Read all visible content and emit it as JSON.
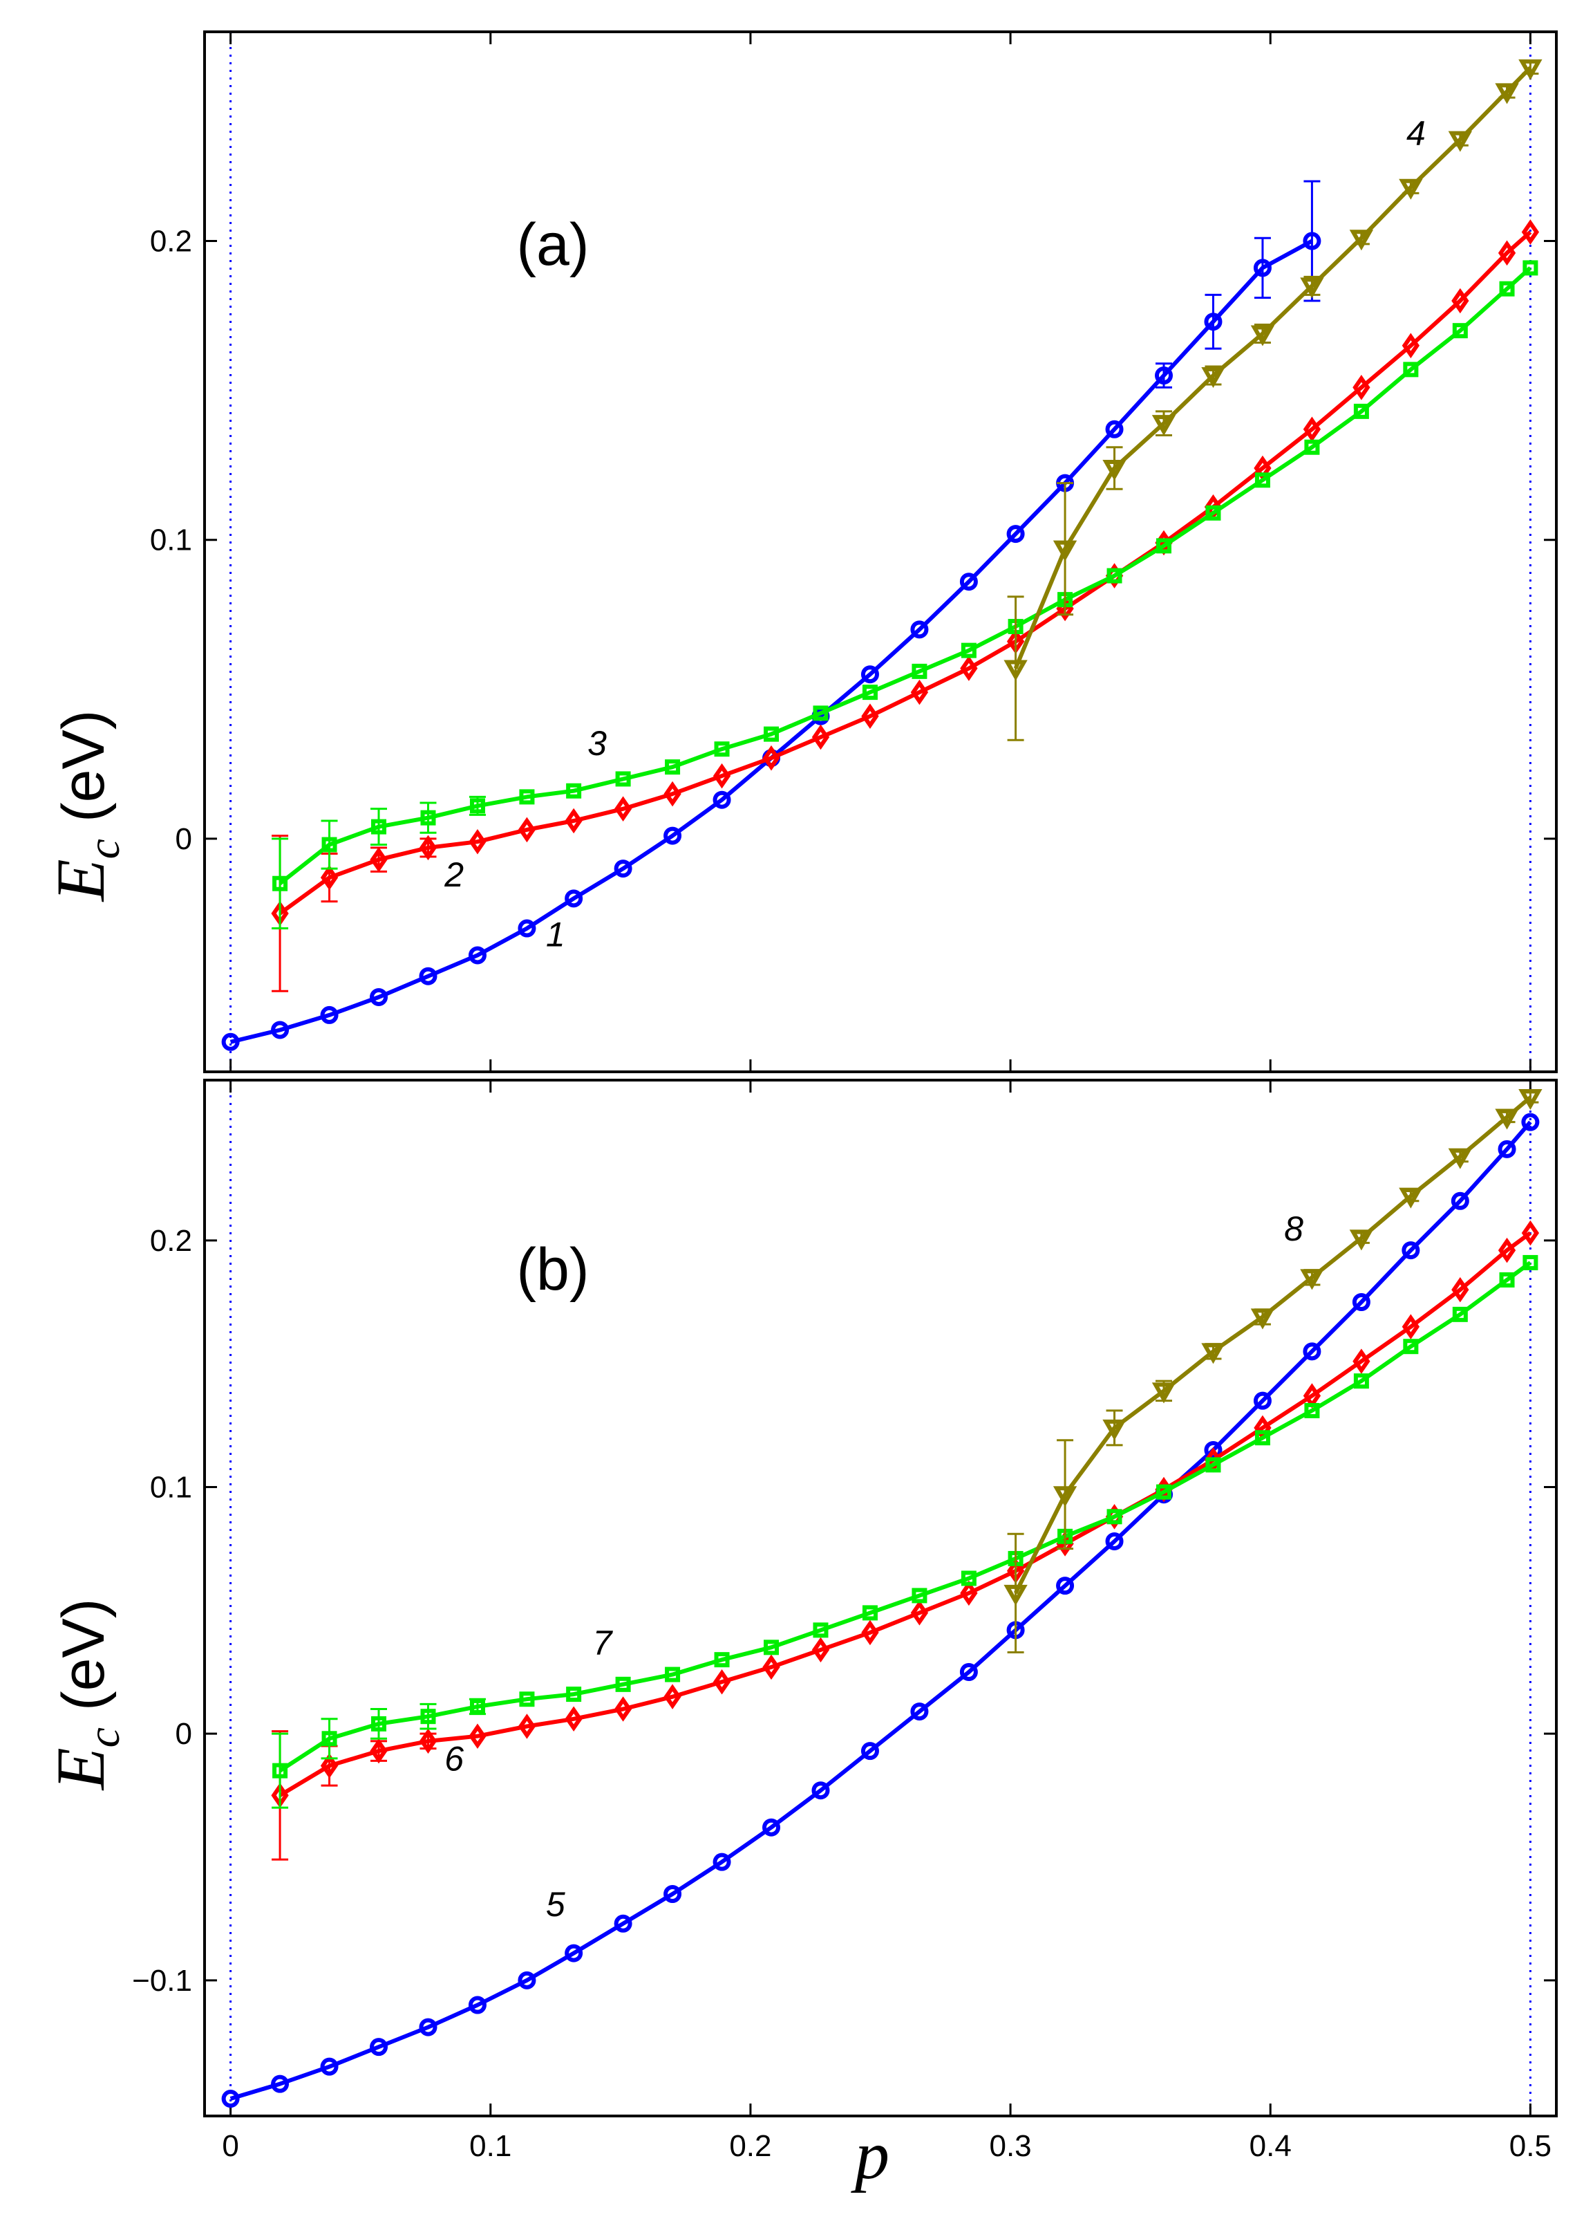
{
  "chart_data": [
    {
      "type": "line",
      "panel_label": "(a)",
      "xlabel": "p",
      "ylabel_main": "E",
      "ylabel_sub": "c",
      "ylabel_unit": "(eV)",
      "xlim": [
        -0.01,
        0.51
      ],
      "ylim": [
        -0.078,
        0.27
      ],
      "xticks": [
        0,
        0.1,
        0.2,
        0.3,
        0.4,
        0.5
      ],
      "xtick_labels": [
        "0",
        "0.1",
        "0.2",
        "0.3",
        "0.4",
        "0.5"
      ],
      "yticks": [
        0,
        0.1,
        0.2
      ],
      "ytick_labels": [
        "0",
        "0.1",
        "0.2"
      ],
      "vlines": [
        0,
        0.5
      ],
      "series": [
        {
          "name": "1",
          "color": "#0000ff",
          "marker": "circle",
          "x": [
            0,
            0.019,
            0.038,
            0.057,
            0.076,
            0.095,
            0.114,
            0.132,
            0.151,
            0.17,
            0.189,
            0.208,
            0.227,
            0.246,
            0.265,
            0.284,
            0.302,
            0.321,
            0.34,
            0.359,
            0.378,
            0.397,
            0.416
          ],
          "y": [
            -0.068,
            -0.064,
            -0.059,
            -0.053,
            -0.046,
            -0.039,
            -0.03,
            -0.02,
            -0.01,
            0.001,
            0.013,
            0.027,
            0.041,
            0.055,
            0.07,
            0.086,
            0.102,
            0.119,
            0.137,
            0.155,
            0.173,
            0.191,
            0.2
          ],
          "err": [
            0,
            0,
            0,
            0,
            0,
            0,
            0,
            0,
            0,
            0,
            0,
            0,
            0,
            0,
            0,
            0,
            0,
            0,
            0,
            0.004,
            0.009,
            0.01,
            0.02
          ]
        },
        {
          "name": "2",
          "color": "#ff0000",
          "marker": "diamond",
          "x": [
            0.019,
            0.038,
            0.057,
            0.076,
            0.095,
            0.114,
            0.132,
            0.151,
            0.17,
            0.189,
            0.208,
            0.227,
            0.246,
            0.265,
            0.284,
            0.302,
            0.321,
            0.34,
            0.359,
            0.378,
            0.397,
            0.416,
            0.435,
            0.454,
            0.473,
            0.491,
            0.5
          ],
          "y": [
            -0.025,
            -0.013,
            -0.007,
            -0.003,
            -0.001,
            0.003,
            0.006,
            0.01,
            0.015,
            0.021,
            0.027,
            0.034,
            0.041,
            0.049,
            0.057,
            0.066,
            0.077,
            0.088,
            0.099,
            0.111,
            0.124,
            0.137,
            0.151,
            0.165,
            0.18,
            0.196,
            0.203
          ],
          "err": [
            0.026,
            0.008,
            0.004,
            0.003,
            0,
            0,
            0,
            0,
            0,
            0,
            0,
            0,
            0,
            0,
            0,
            0,
            0,
            0,
            0,
            0,
            0,
            0,
            0,
            0,
            0,
            0,
            0
          ]
        },
        {
          "name": "3",
          "color": "#00ee00",
          "marker": "square",
          "x": [
            0.019,
            0.038,
            0.057,
            0.076,
            0.095,
            0.114,
            0.132,
            0.151,
            0.17,
            0.189,
            0.208,
            0.227,
            0.246,
            0.265,
            0.284,
            0.302,
            0.321,
            0.34,
            0.359,
            0.378,
            0.397,
            0.416,
            0.435,
            0.454,
            0.473,
            0.491,
            0.5
          ],
          "y": [
            -0.015,
            -0.002,
            0.004,
            0.007,
            0.011,
            0.014,
            0.016,
            0.02,
            0.024,
            0.03,
            0.035,
            0.042,
            0.049,
            0.056,
            0.063,
            0.071,
            0.08,
            0.088,
            0.098,
            0.109,
            0.12,
            0.131,
            0.143,
            0.157,
            0.17,
            0.184,
            0.191
          ],
          "err": [
            0.015,
            0.008,
            0.006,
            0.005,
            0.003,
            0,
            0,
            0,
            0,
            0,
            0,
            0,
            0,
            0,
            0,
            0,
            0,
            0,
            0,
            0,
            0,
            0,
            0,
            0,
            0,
            0,
            0
          ]
        },
        {
          "name": "4",
          "color": "#8b8000",
          "marker": "triangle-down",
          "x": [
            0.302,
            0.321,
            0.34,
            0.359,
            0.378,
            0.397,
            0.416,
            0.435,
            0.454,
            0.473,
            0.491,
            0.5
          ],
          "y": [
            0.057,
            0.097,
            0.124,
            0.139,
            0.155,
            0.169,
            0.185,
            0.201,
            0.218,
            0.234,
            0.25,
            0.258
          ],
          "err": [
            0.024,
            0.022,
            0.007,
            0.004,
            0.003,
            0.003,
            0.003,
            0.002,
            0.002,
            0.002,
            0.002,
            0.002
          ]
        }
      ],
      "annotations": [
        {
          "text": "1",
          "x": 0.125,
          "y": -0.036
        },
        {
          "text": "2",
          "x": 0.086,
          "y": -0.016
        },
        {
          "text": "3",
          "x": 0.141,
          "y": 0.028
        },
        {
          "text": "4",
          "x": 0.456,
          "y": 0.232
        }
      ]
    },
    {
      "type": "line",
      "panel_label": "(b)",
      "xlabel": "p",
      "ylabel_main": "E",
      "ylabel_sub": "c",
      "ylabel_unit": "(eV)",
      "xlim": [
        -0.01,
        0.51
      ],
      "ylim": [
        -0.155,
        0.265
      ],
      "xticks": [
        0,
        0.1,
        0.2,
        0.3,
        0.4,
        0.5
      ],
      "xtick_labels": [
        "0",
        "0.1",
        "0.2",
        "0.3",
        "0.4",
        "0.5"
      ],
      "yticks": [
        -0.1,
        0,
        0.1,
        0.2
      ],
      "ytick_labels": [
        "−0.1",
        "0",
        "0.1",
        "0.2"
      ],
      "vlines": [
        0,
        0.5
      ],
      "series": [
        {
          "name": "5",
          "color": "#0000ff",
          "marker": "circle",
          "x": [
            0,
            0.019,
            0.038,
            0.057,
            0.076,
            0.095,
            0.114,
            0.132,
            0.151,
            0.17,
            0.189,
            0.208,
            0.227,
            0.246,
            0.265,
            0.284,
            0.302,
            0.321,
            0.34,
            0.359,
            0.378,
            0.397,
            0.416,
            0.435,
            0.454,
            0.473,
            0.491,
            0.5
          ],
          "y": [
            -0.148,
            -0.142,
            -0.135,
            -0.127,
            -0.119,
            -0.11,
            -0.1,
            -0.089,
            -0.077,
            -0.065,
            -0.052,
            -0.038,
            -0.023,
            -0.007,
            0.009,
            0.025,
            0.042,
            0.06,
            0.078,
            0.097,
            0.115,
            0.135,
            0.155,
            0.175,
            0.196,
            0.216,
            0.237,
            0.248
          ],
          "err": []
        },
        {
          "name": "6",
          "color": "#ff0000",
          "marker": "diamond",
          "x": [
            0.019,
            0.038,
            0.057,
            0.076,
            0.095,
            0.114,
            0.132,
            0.151,
            0.17,
            0.189,
            0.208,
            0.227,
            0.246,
            0.265,
            0.284,
            0.302,
            0.321,
            0.34,
            0.359,
            0.378,
            0.397,
            0.416,
            0.435,
            0.454,
            0.473,
            0.491,
            0.5
          ],
          "y": [
            -0.025,
            -0.013,
            -0.007,
            -0.003,
            -0.001,
            0.003,
            0.006,
            0.01,
            0.015,
            0.021,
            0.027,
            0.034,
            0.041,
            0.049,
            0.057,
            0.066,
            0.077,
            0.088,
            0.099,
            0.111,
            0.124,
            0.137,
            0.151,
            0.165,
            0.18,
            0.196,
            0.203
          ],
          "err": [
            0.026,
            0.008,
            0.004,
            0.003,
            0,
            0,
            0,
            0,
            0,
            0,
            0,
            0,
            0,
            0,
            0,
            0,
            0,
            0,
            0,
            0,
            0,
            0,
            0,
            0,
            0,
            0,
            0
          ]
        },
        {
          "name": "7",
          "color": "#00ee00",
          "marker": "square",
          "x": [
            0.019,
            0.038,
            0.057,
            0.076,
            0.095,
            0.114,
            0.132,
            0.151,
            0.17,
            0.189,
            0.208,
            0.227,
            0.246,
            0.265,
            0.284,
            0.302,
            0.321,
            0.34,
            0.359,
            0.378,
            0.397,
            0.416,
            0.435,
            0.454,
            0.473,
            0.491,
            0.5
          ],
          "y": [
            -0.015,
            -0.002,
            0.004,
            0.007,
            0.011,
            0.014,
            0.016,
            0.02,
            0.024,
            0.03,
            0.035,
            0.042,
            0.049,
            0.056,
            0.063,
            0.071,
            0.08,
            0.088,
            0.098,
            0.109,
            0.12,
            0.131,
            0.143,
            0.157,
            0.17,
            0.184,
            0.191
          ],
          "err": [
            0.015,
            0.008,
            0.006,
            0.005,
            0.003,
            0,
            0,
            0,
            0,
            0,
            0,
            0,
            0,
            0,
            0,
            0,
            0,
            0,
            0,
            0,
            0,
            0,
            0,
            0,
            0,
            0,
            0
          ]
        },
        {
          "name": "8",
          "color": "#8b8000",
          "marker": "triangle-down",
          "x": [
            0.302,
            0.321,
            0.34,
            0.359,
            0.378,
            0.397,
            0.416,
            0.435,
            0.454,
            0.473,
            0.491,
            0.5
          ],
          "y": [
            0.057,
            0.097,
            0.124,
            0.139,
            0.155,
            0.169,
            0.185,
            0.201,
            0.218,
            0.234,
            0.25,
            0.258
          ],
          "err": [
            0.024,
            0.022,
            0.007,
            0.004,
            0.003,
            0.003,
            0.003,
            0.002,
            0.002,
            0.002,
            0.002,
            0.002
          ]
        }
      ],
      "annotations": [
        {
          "text": "5",
          "x": 0.125,
          "y": -0.074
        },
        {
          "text": "6",
          "x": 0.086,
          "y": -0.015
        },
        {
          "text": "7",
          "x": 0.143,
          "y": 0.032
        },
        {
          "text": "8",
          "x": 0.409,
          "y": 0.2
        }
      ]
    }
  ]
}
